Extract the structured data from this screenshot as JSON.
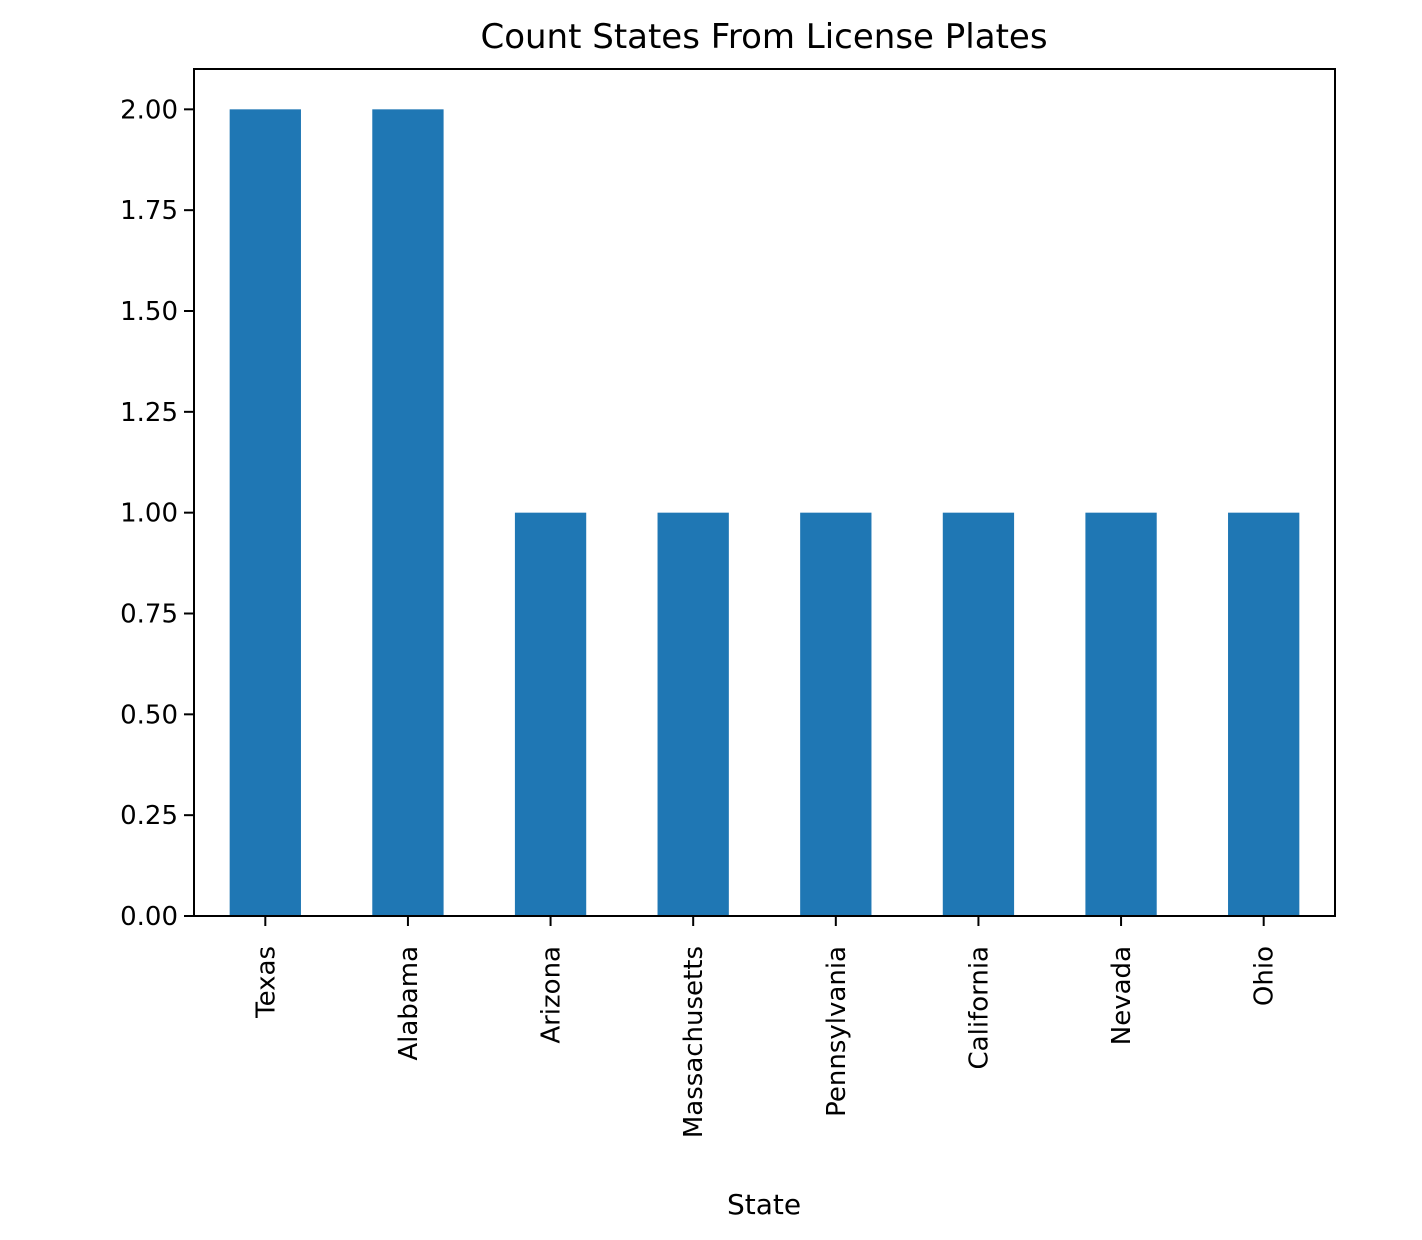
{
  "chart_data": {
    "type": "bar",
    "title": "Count States From License Plates",
    "xlabel": "State",
    "ylabel": "",
    "categories": [
      "Texas",
      "Alabama",
      "Arizona",
      "Massachusetts",
      "Pennsylvania",
      "California",
      "Nevada",
      "Ohio"
    ],
    "values": [
      2,
      2,
      1,
      1,
      1,
      1,
      1,
      1
    ],
    "ylim": [
      0,
      2.1
    ],
    "yticks": [
      "0.00",
      "0.25",
      "0.50",
      "0.75",
      "1.00",
      "1.25",
      "1.50",
      "1.75",
      "2.00"
    ],
    "grid": false,
    "legend": "none",
    "bar_color": "#1f77b4"
  }
}
